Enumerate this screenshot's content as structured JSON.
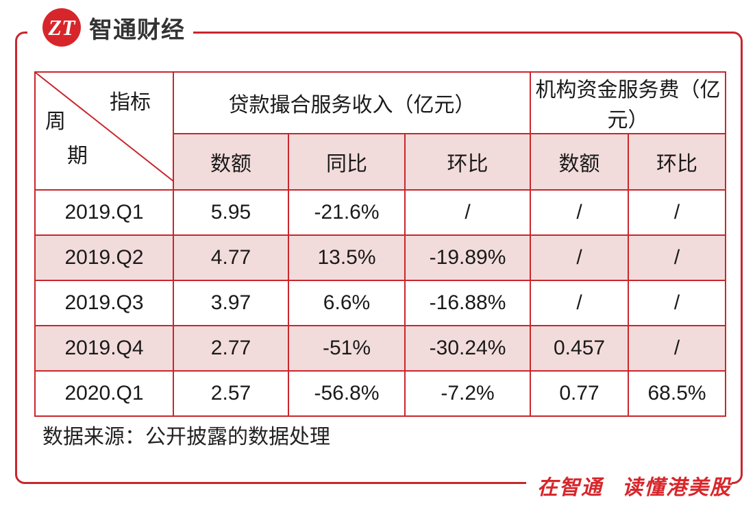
{
  "brand": {
    "logo_mark": "ZT",
    "name": "智通财经"
  },
  "slogan": {
    "part1": "在智通",
    "part2": "读懂港美股"
  },
  "table": {
    "corner": {
      "top_label": "指标",
      "left_label_1": "周",
      "left_label_2": "期"
    },
    "group_headers": [
      "贷款撮合服务收入（亿元）",
      "机构资金服务费（亿元）"
    ],
    "sub_headers": [
      "数额",
      "同比",
      "环比",
      "数额",
      "环比"
    ],
    "rows": [
      {
        "period": "2019.Q1",
        "cells": [
          "5.95",
          "-21.6%",
          "/",
          "/",
          "/"
        ]
      },
      {
        "period": "2019.Q2",
        "cells": [
          "4.77",
          "13.5%",
          "-19.89%",
          "/",
          "/"
        ]
      },
      {
        "period": "2019.Q3",
        "cells": [
          "3.97",
          "6.6%",
          "-16.88%",
          "/",
          "/"
        ]
      },
      {
        "period": "2019.Q4",
        "cells": [
          "2.77",
          "-51%",
          "-30.24%",
          "0.457",
          "/"
        ]
      },
      {
        "period": "2020.Q1",
        "cells": [
          "2.57",
          "-56.8%",
          "-7.2%",
          "0.77",
          "68.5%"
        ]
      }
    ]
  },
  "source_note": "数据来源：公开披露的数据处理",
  "colors": {
    "accent": "#c8262c",
    "row_shade": "#f2dcdb"
  }
}
